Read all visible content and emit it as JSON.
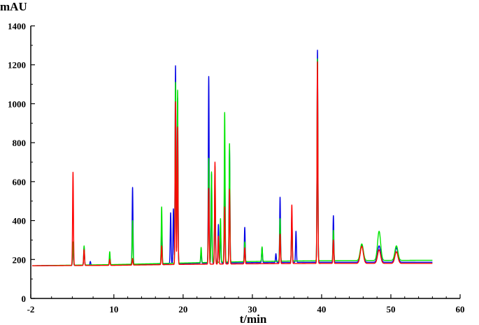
{
  "chart_data": {
    "type": "line",
    "title": "",
    "xlabel": "t/min",
    "ylabel": "mAU",
    "xlim": [
      -2,
      60
    ],
    "ylim": [
      0,
      1400
    ],
    "xticks": [
      -2,
      10,
      20,
      30,
      40,
      50,
      60
    ],
    "xtick_labels": [
      "-2",
      "10",
      "20",
      "30",
      "40",
      "50",
      "60"
    ],
    "yticks": [
      0,
      200,
      400,
      600,
      800,
      1000,
      1200,
      1400
    ],
    "ytick_labels": [
      "0",
      "200",
      "400",
      "600",
      "800",
      "1000",
      "1200",
      "1400"
    ],
    "grid": false,
    "legend": "none",
    "series": [
      {
        "color": "#0000e6",
        "baseline": [
          [
            -1.8,
            168
          ],
          [
            10,
            172
          ],
          [
            20,
            180
          ],
          [
            30,
            184
          ],
          [
            40,
            186
          ],
          [
            56,
            186
          ]
        ],
        "peaks": [
          [
            4.1,
            285
          ],
          [
            5.7,
            265
          ],
          [
            6.6,
            190
          ],
          [
            9.4,
            215
          ],
          [
            12.7,
            570
          ],
          [
            16.9,
            380
          ],
          [
            18.2,
            440
          ],
          [
            18.6,
            460
          ],
          [
            18.9,
            1195
          ],
          [
            19.2,
            1030
          ],
          [
            22.6,
            240
          ],
          [
            23.7,
            1140
          ],
          [
            24.1,
            640
          ],
          [
            24.6,
            570
          ],
          [
            25.1,
            380
          ],
          [
            25.4,
            360
          ],
          [
            26.0,
            740
          ],
          [
            26.7,
            770
          ],
          [
            28.9,
            365
          ],
          [
            31.4,
            262
          ],
          [
            33.4,
            230
          ],
          [
            34.0,
            520
          ],
          [
            35.7,
            430
          ],
          [
            36.3,
            345
          ],
          [
            39.4,
            1275
          ],
          [
            41.7,
            425
          ],
          [
            45.8,
            272
          ],
          [
            48.3,
            270
          ],
          [
            50.8,
            260
          ]
        ]
      },
      {
        "color": "#00e600",
        "baseline": [
          [
            -1.8,
            168
          ],
          [
            10,
            174
          ],
          [
            20,
            182
          ],
          [
            30,
            190
          ],
          [
            40,
            194
          ],
          [
            56,
            196
          ]
        ],
        "peaks": [
          [
            4.1,
            290
          ],
          [
            5.7,
            270
          ],
          [
            9.4,
            240
          ],
          [
            12.7,
            400
          ],
          [
            16.9,
            470
          ],
          [
            18.9,
            1110
          ],
          [
            19.2,
            1070
          ],
          [
            22.6,
            262
          ],
          [
            23.7,
            720
          ],
          [
            24.1,
            650
          ],
          [
            24.6,
            680
          ],
          [
            25.4,
            410
          ],
          [
            26.0,
            955
          ],
          [
            26.7,
            795
          ],
          [
            28.9,
            290
          ],
          [
            31.4,
            265
          ],
          [
            34.0,
            410
          ],
          [
            35.7,
            400
          ],
          [
            39.4,
            1230
          ],
          [
            41.7,
            350
          ],
          [
            45.8,
            280
          ],
          [
            48.3,
            345
          ],
          [
            50.8,
            270
          ]
        ]
      },
      {
        "color": "#ff0000",
        "baseline": [
          [
            -1.8,
            168
          ],
          [
            10,
            170
          ],
          [
            20,
            175
          ],
          [
            30,
            178
          ],
          [
            40,
            180
          ],
          [
            56,
            180
          ]
        ],
        "peaks": [
          [
            4.1,
            648
          ],
          [
            5.7,
            250
          ],
          [
            9.4,
            200
          ],
          [
            12.7,
            205
          ],
          [
            16.9,
            270
          ],
          [
            18.9,
            1010
          ],
          [
            19.2,
            880
          ],
          [
            23.7,
            565
          ],
          [
            24.6,
            700
          ],
          [
            25.1,
            320
          ],
          [
            26.0,
            470
          ],
          [
            26.7,
            560
          ],
          [
            28.9,
            260
          ],
          [
            34.0,
            330
          ],
          [
            35.7,
            480
          ],
          [
            39.4,
            1215
          ],
          [
            41.7,
            300
          ],
          [
            45.8,
            268
          ],
          [
            48.3,
            250
          ],
          [
            50.8,
            240
          ]
        ]
      }
    ]
  }
}
